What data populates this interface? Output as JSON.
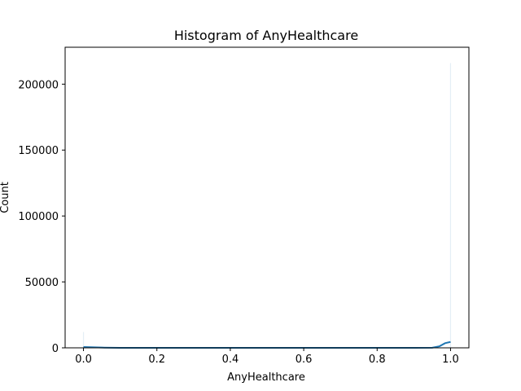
{
  "chart_data": {
    "type": "bar",
    "title": "Histogram of AnyHealthcare",
    "xlabel": "AnyHealthcare",
    "ylabel": "Count",
    "xlim": [
      -0.05,
      1.05
    ],
    "ylim": [
      0,
      228000
    ],
    "xticks": [
      0.0,
      0.2,
      0.4,
      0.6,
      0.8,
      1.0
    ],
    "xtick_labels": [
      "0.0",
      "0.2",
      "0.4",
      "0.6",
      "0.8",
      "1.0"
    ],
    "yticks": [
      0,
      50000,
      100000,
      150000,
      200000
    ],
    "ytick_labels": [
      "0",
      "50000",
      "100000",
      "150000",
      "200000"
    ],
    "grid": false,
    "bars": [
      {
        "x": 0.0,
        "value": 12000
      },
      {
        "x": 1.0,
        "value": 216000
      }
    ],
    "kde_curve": [
      [
        0.0,
        600
      ],
      [
        0.02,
        500
      ],
      [
        0.05,
        200
      ],
      [
        0.1,
        0
      ],
      [
        0.5,
        0
      ],
      [
        0.9,
        0
      ],
      [
        0.95,
        100
      ],
      [
        0.97,
        1200
      ],
      [
        0.985,
        3500
      ],
      [
        1.0,
        4500
      ]
    ],
    "colors": {
      "bar": "#1f77b4",
      "kde": "#1f77b4"
    }
  }
}
